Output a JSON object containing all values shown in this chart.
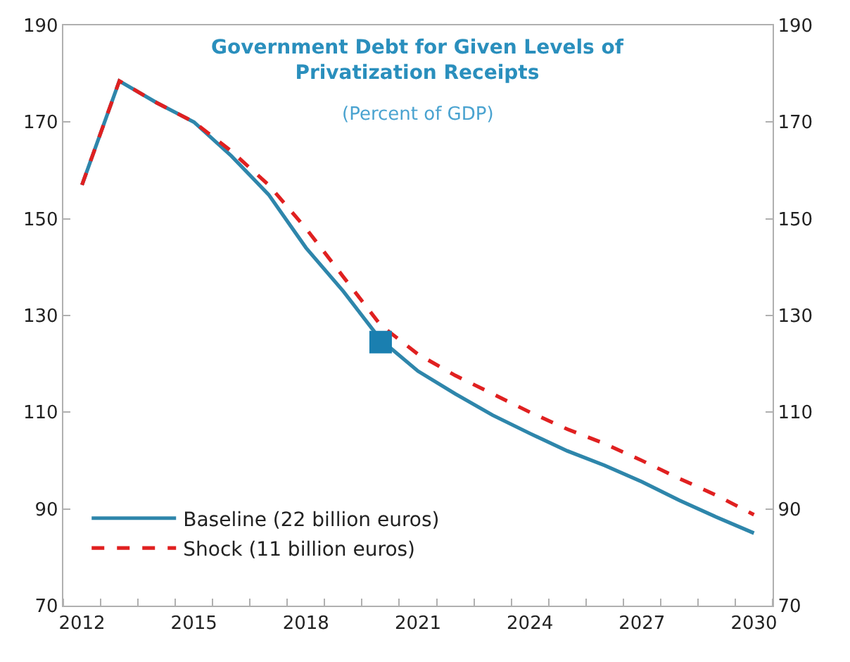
{
  "chart_data": {
    "type": "line",
    "title": "Government Debt for Given Levels of Privatization Receipts",
    "subtitle": "(Percent of GDP)",
    "x": [
      2012,
      2013,
      2014,
      2015,
      2016,
      2017,
      2018,
      2019,
      2020,
      2021,
      2022,
      2023,
      2024,
      2025,
      2026,
      2027,
      2028,
      2029,
      2030
    ],
    "series": [
      {
        "name": "Baseline (22 billion euros)",
        "color": "#2e86ab",
        "line_style": "solid",
        "values": [
          157,
          178.5,
          174,
          170,
          163,
          155,
          144,
          135,
          125,
          118.5,
          113.8,
          109.4,
          105.6,
          102,
          99,
          95.6,
          91.8,
          88.3,
          85
        ]
      },
      {
        "name": "Shock (11 billion euros)",
        "color": "#e02020",
        "line_style": "dashed",
        "values": [
          157,
          178.5,
          174,
          170,
          164,
          157,
          148,
          138,
          128,
          122,
          117.6,
          113.8,
          110,
          106.5,
          103.5,
          100,
          96.3,
          92.8,
          88.8
        ]
      },
      {
        "type": "scatter",
        "marker": "square",
        "color": "#1a7fb0",
        "x": [
          2020
        ],
        "values": [
          124.5
        ]
      }
    ],
    "xlim": [
      2011.5,
      2030.5
    ],
    "xticks": [
      2012,
      2015,
      2018,
      2021,
      2024,
      2027,
      2030
    ],
    "ylim": [
      70,
      190
    ],
    "yticks": [
      70,
      90,
      110,
      130,
      150,
      170,
      190
    ],
    "y2lim": [
      70,
      190
    ],
    "y2ticks": [
      70,
      90,
      110,
      130,
      150,
      170,
      190
    ],
    "legend": "bottom left"
  }
}
